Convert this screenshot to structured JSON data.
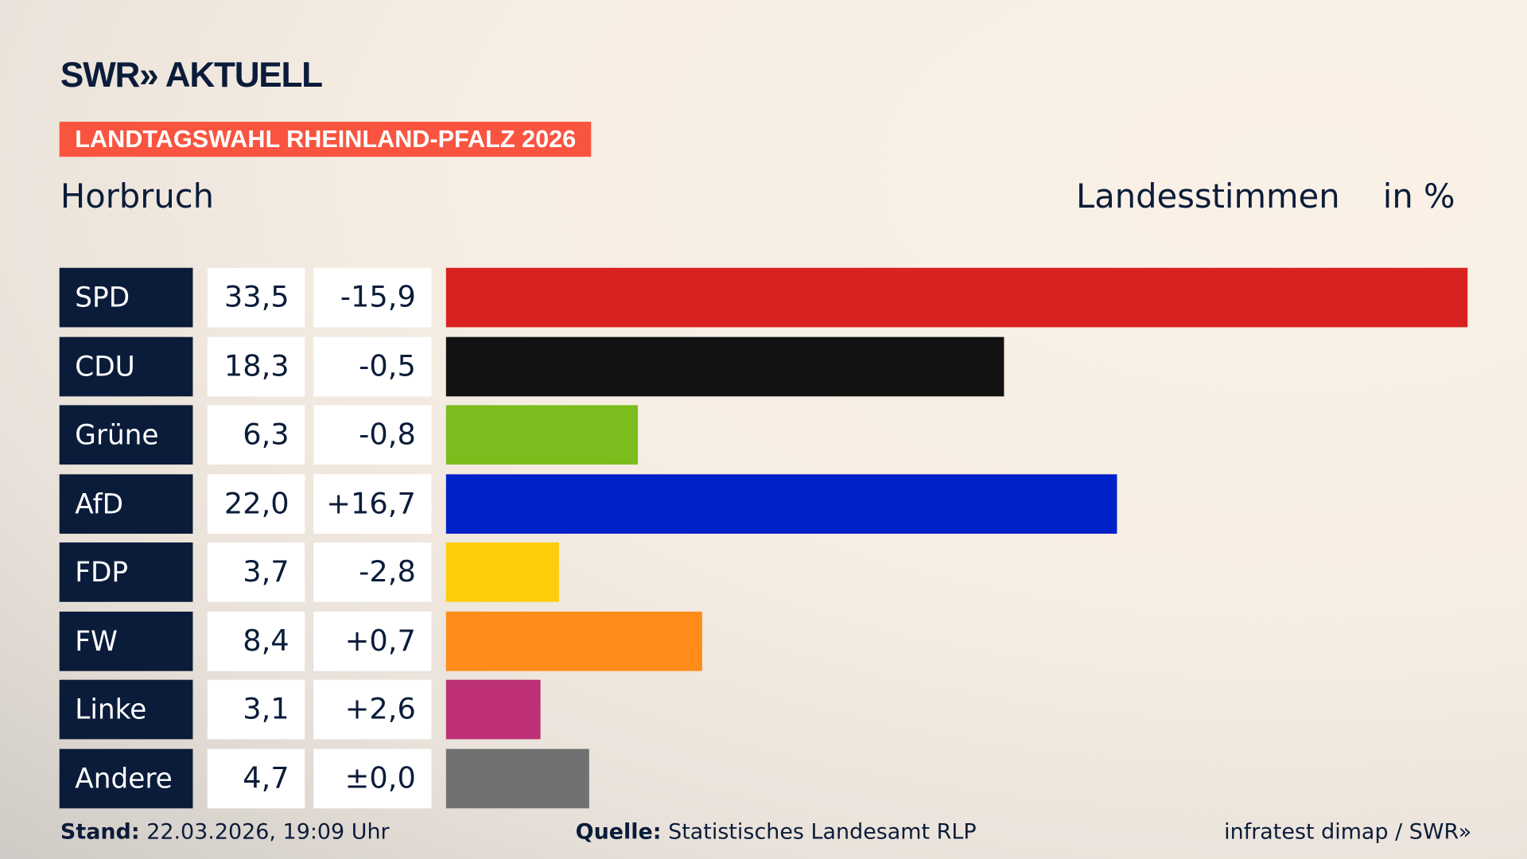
{
  "header": {
    "logo": "SWR» AKTUELL",
    "banner": "LANDTAGSWAHL RHEINLAND-PFALZ 2026",
    "place": "Horbruch",
    "mode": "Landesstimmen",
    "unit": "in %"
  },
  "chart_data": {
    "type": "bar",
    "orientation": "horizontal",
    "categories": [
      "SPD",
      "CDU",
      "Grüne",
      "AfD",
      "FDP",
      "FW",
      "Linke",
      "Andere"
    ],
    "values": [
      33.5,
      18.3,
      6.3,
      22.0,
      3.7,
      8.4,
      3.1,
      4.7
    ],
    "values_label": [
      "33,5",
      "18,3",
      "6,3",
      "22,0",
      "3,7",
      "8,4",
      "3,1",
      "4,7"
    ],
    "diff_label": [
      "-15,9",
      "-0,5",
      "-0,8",
      "+16,7",
      "-2,8",
      "+0,7",
      "+2,6",
      "±0,0"
    ],
    "colors": [
      "#d92121",
      "#121212",
      "#7bbd1c",
      "#0020c8",
      "#ffcc0a",
      "#ff8c19",
      "#bd3075",
      "#717171"
    ],
    "xlim": [
      0,
      33.5
    ]
  },
  "footer": {
    "stand_label": "Stand:",
    "stand": "22.03.2026, 19:09 Uhr",
    "quelle_label": "Quelle:",
    "quelle": "Statistisches Landesamt RLP",
    "credit": "infratest dimap / SWR»"
  }
}
